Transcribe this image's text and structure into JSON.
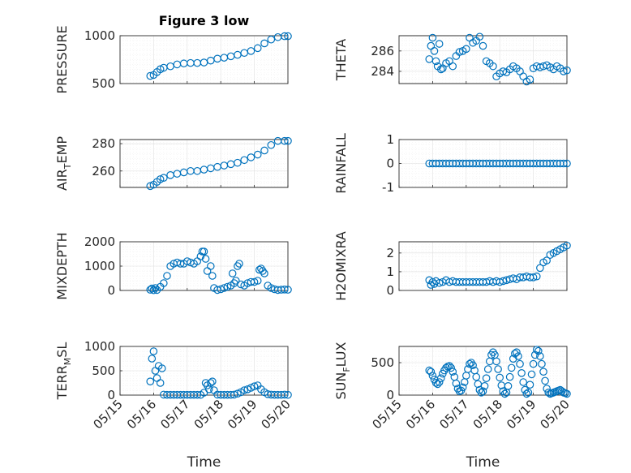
{
  "chart_data": [
    {
      "id": "pressure",
      "type": "scatter",
      "title": "Figure 3 low",
      "ylabel": "PRESSURE",
      "xlabel": "",
      "xlim": [
        0,
        5
      ],
      "ylim": [
        500,
        1000
      ],
      "yticks": [
        500,
        1000
      ],
      "color": "#0072bd",
      "x": [
        0.9,
        1.0,
        1.1,
        1.2,
        1.3,
        1.5,
        1.7,
        1.9,
        2.1,
        2.3,
        2.5,
        2.7,
        2.9,
        3.1,
        3.3,
        3.5,
        3.7,
        3.9,
        4.1,
        4.3,
        4.5,
        4.7,
        4.9,
        5.0
      ],
      "y": [
        580,
        590,
        620,
        650,
        665,
        680,
        700,
        710,
        715,
        715,
        720,
        740,
        760,
        770,
        785,
        800,
        820,
        840,
        870,
        920,
        960,
        985,
        995,
        995
      ]
    },
    {
      "id": "theta",
      "type": "scatter",
      "title": "",
      "ylabel": "THETA",
      "xlabel": "",
      "xlim": [
        0,
        5
      ],
      "ylim": [
        282.8,
        287.5
      ],
      "yticks": [
        284,
        286
      ],
      "color": "#0072bd",
      "x": [
        0.9,
        0.95,
        1.0,
        1.05,
        1.1,
        1.15,
        1.2,
        1.25,
        1.3,
        1.4,
        1.5,
        1.6,
        1.7,
        1.8,
        1.9,
        2.0,
        2.1,
        2.2,
        2.3,
        2.4,
        2.5,
        2.6,
        2.7,
        2.8,
        2.9,
        3.0,
        3.1,
        3.2,
        3.3,
        3.4,
        3.5,
        3.6,
        3.7,
        3.8,
        3.9,
        4.0,
        4.1,
        4.2,
        4.3,
        4.4,
        4.5,
        4.6,
        4.7,
        4.8,
        4.9,
        5.0
      ],
      "y": [
        285.2,
        286.5,
        287.3,
        286.0,
        285.0,
        284.5,
        286.7,
        284.2,
        284.3,
        284.8,
        285.0,
        284.5,
        285.5,
        285.9,
        286.0,
        286.2,
        287.3,
        286.8,
        287.0,
        287.4,
        286.5,
        285.0,
        284.8,
        284.5,
        283.5,
        283.8,
        284.0,
        283.9,
        284.2,
        284.5,
        284.3,
        284.0,
        283.5,
        283.0,
        283.2,
        284.3,
        284.5,
        284.4,
        284.5,
        284.6,
        284.4,
        284.2,
        284.5,
        284.3,
        284.0,
        284.1
      ]
    },
    {
      "id": "air_temp",
      "type": "scatter",
      "title": "",
      "ylabel": "AIR_TEMP",
      "ylabel_main": "AIR",
      "ylabel_sub": "T",
      "ylabel_rest": "EMP",
      "xlabel": "",
      "xlim": [
        0,
        5
      ],
      "ylim": [
        248,
        283
      ],
      "yticks": [
        260,
        280
      ],
      "color": "#0072bd",
      "x": [
        0.9,
        1.0,
        1.1,
        1.2,
        1.3,
        1.5,
        1.7,
        1.9,
        2.1,
        2.3,
        2.5,
        2.7,
        2.9,
        3.1,
        3.3,
        3.5,
        3.7,
        3.9,
        4.1,
        4.3,
        4.5,
        4.7,
        4.9,
        5.0
      ],
      "y": [
        249,
        250,
        252,
        254,
        255,
        257,
        258,
        259,
        260,
        260,
        261,
        262,
        263,
        264,
        265,
        266,
        268,
        270,
        272,
        275,
        279,
        282,
        282,
        282
      ]
    },
    {
      "id": "rainfall",
      "type": "scatter",
      "title": "",
      "ylabel": "RAINFALL",
      "xlabel": "",
      "xlim": [
        0,
        5
      ],
      "ylim": [
        -1,
        1
      ],
      "yticks": [
        -1,
        0,
        1
      ],
      "color": "#0072bd",
      "x": [
        0.9,
        1.0,
        1.1,
        1.2,
        1.3,
        1.4,
        1.5,
        1.6,
        1.7,
        1.8,
        1.9,
        2.0,
        2.1,
        2.2,
        2.3,
        2.4,
        2.5,
        2.6,
        2.7,
        2.8,
        2.9,
        3.0,
        3.1,
        3.2,
        3.3,
        3.4,
        3.5,
        3.6,
        3.7,
        3.8,
        3.9,
        4.0,
        4.1,
        4.2,
        4.3,
        4.4,
        4.5,
        4.6,
        4.7,
        4.8,
        4.9,
        5.0
      ],
      "y": [
        0,
        0,
        0,
        0,
        0,
        0,
        0,
        0,
        0,
        0,
        0,
        0,
        0,
        0,
        0,
        0,
        0,
        0,
        0,
        0,
        0,
        0,
        0,
        0,
        0,
        0,
        0,
        0,
        0,
        0,
        0,
        0,
        0,
        0,
        0,
        0,
        0,
        0,
        0,
        0,
        0,
        0
      ]
    },
    {
      "id": "mixdepth",
      "type": "scatter",
      "title": "",
      "ylabel": "MIXDEPTH",
      "xlabel": "",
      "xlim": [
        0,
        5
      ],
      "ylim": [
        0,
        2000
      ],
      "yticks": [
        0,
        1000,
        2000
      ],
      "color": "#0072bd",
      "x": [
        0.9,
        0.95,
        1.0,
        1.05,
        1.1,
        1.2,
        1.3,
        1.4,
        1.5,
        1.6,
        1.7,
        1.8,
        1.9,
        2.0,
        2.1,
        2.2,
        2.3,
        2.4,
        2.45,
        2.5,
        2.55,
        2.6,
        2.7,
        2.75,
        2.8,
        2.9,
        3.0,
        3.1,
        3.2,
        3.3,
        3.35,
        3.4,
        3.45,
        3.5,
        3.55,
        3.6,
        3.7,
        3.8,
        3.9,
        4.0,
        4.1,
        4.15,
        4.2,
        4.25,
        4.3,
        4.4,
        4.5,
        4.6,
        4.7,
        4.8,
        4.9,
        5.0
      ],
      "y": [
        30,
        80,
        10,
        100,
        20,
        150,
        300,
        600,
        1000,
        1100,
        1150,
        1100,
        1100,
        1200,
        1150,
        1100,
        1200,
        1400,
        1600,
        1600,
        1300,
        800,
        1000,
        600,
        100,
        20,
        50,
        100,
        150,
        200,
        700,
        300,
        400,
        1000,
        1100,
        250,
        200,
        300,
        350,
        350,
        400,
        850,
        900,
        800,
        700,
        200,
        100,
        50,
        20,
        30,
        40,
        30
      ]
    },
    {
      "id": "h2omixra",
      "type": "scatter",
      "title": "",
      "ylabel": "H2OMIXRA",
      "xlabel": "",
      "xlim": [
        0,
        5
      ],
      "ylim": [
        0,
        2.6
      ],
      "yticks": [
        0,
        1,
        2
      ],
      "color": "#0072bd",
      "x": [
        0.9,
        0.95,
        1.0,
        1.05,
        1.1,
        1.2,
        1.3,
        1.4,
        1.5,
        1.6,
        1.7,
        1.8,
        1.9,
        2.0,
        2.1,
        2.2,
        2.3,
        2.4,
        2.5,
        2.6,
        2.7,
        2.8,
        2.9,
        3.0,
        3.1,
        3.2,
        3.3,
        3.4,
        3.5,
        3.6,
        3.7,
        3.8,
        3.9,
        4.0,
        4.1,
        4.2,
        4.3,
        4.4,
        4.5,
        4.6,
        4.7,
        4.8,
        4.9,
        5.0
      ],
      "y": [
        0.55,
        0.3,
        0.45,
        0.35,
        0.5,
        0.4,
        0.45,
        0.55,
        0.45,
        0.5,
        0.45,
        0.45,
        0.45,
        0.45,
        0.45,
        0.45,
        0.45,
        0.45,
        0.45,
        0.45,
        0.5,
        0.45,
        0.5,
        0.45,
        0.5,
        0.55,
        0.6,
        0.65,
        0.6,
        0.7,
        0.7,
        0.75,
        0.7,
        0.7,
        0.75,
        1.2,
        1.5,
        1.6,
        1.9,
        2.0,
        2.1,
        2.2,
        2.3,
        2.4
      ]
    },
    {
      "id": "terr_msl",
      "type": "scatter",
      "title": "",
      "ylabel": "TERR_MSL",
      "ylabel_main": "TERR",
      "ylabel_sub": "M",
      "ylabel_rest": "SL",
      "xlabel": "Time",
      "xlim": [
        0,
        5
      ],
      "ylim": [
        0,
        1000
      ],
      "yticks": [
        0,
        500,
        1000
      ],
      "color": "#0072bd",
      "xticklabels": [
        "05/15",
        "05/16",
        "05/17",
        "05/18",
        "05/19",
        "05/20"
      ],
      "x": [
        0.9,
        0.95,
        1.0,
        1.05,
        1.1,
        1.15,
        1.2,
        1.25,
        1.3,
        1.4,
        1.5,
        1.6,
        1.7,
        1.8,
        1.9,
        2.0,
        2.1,
        2.2,
        2.3,
        2.4,
        2.5,
        2.55,
        2.6,
        2.65,
        2.7,
        2.75,
        2.8,
        2.9,
        3.0,
        3.1,
        3.2,
        3.3,
        3.4,
        3.5,
        3.6,
        3.7,
        3.8,
        3.9,
        4.0,
        4.1,
        4.2,
        4.3,
        4.4,
        4.5,
        4.6,
        4.7,
        4.8,
        4.9,
        5.0
      ],
      "y": [
        280,
        750,
        900,
        500,
        350,
        600,
        250,
        550,
        10,
        5,
        5,
        5,
        5,
        5,
        5,
        5,
        5,
        5,
        5,
        5,
        50,
        250,
        200,
        120,
        250,
        280,
        100,
        10,
        5,
        5,
        5,
        5,
        10,
        30,
        60,
        100,
        120,
        150,
        180,
        200,
        120,
        60,
        20,
        10,
        5,
        5,
        5,
        10,
        5
      ]
    },
    {
      "id": "sun_flux",
      "type": "scatter",
      "title": "",
      "ylabel": "SUN_FLUX",
      "ylabel_main": "SUN",
      "ylabel_sub": "F",
      "ylabel_rest": "LUX",
      "xlabel": "Time",
      "xlim": [
        0,
        5
      ],
      "ylim": [
        0,
        750
      ],
      "yticks": [
        0,
        500
      ],
      "color": "#0072bd",
      "xticklabels": [
        "05/15",
        "05/16",
        "05/17",
        "05/18",
        "05/19",
        "05/20"
      ],
      "x": [
        0.9,
        0.95,
        1.0,
        1.05,
        1.1,
        1.15,
        1.2,
        1.25,
        1.3,
        1.35,
        1.4,
        1.45,
        1.5,
        1.55,
        1.6,
        1.65,
        1.7,
        1.75,
        1.8,
        1.85,
        1.9,
        1.95,
        2.0,
        2.05,
        2.1,
        2.15,
        2.2,
        2.25,
        2.3,
        2.35,
        2.4,
        2.45,
        2.5,
        2.55,
        2.6,
        2.65,
        2.7,
        2.75,
        2.8,
        2.85,
        2.9,
        2.95,
        3.0,
        3.05,
        3.1,
        3.15,
        3.2,
        3.25,
        3.3,
        3.35,
        3.4,
        3.45,
        3.5,
        3.55,
        3.6,
        3.65,
        3.7,
        3.75,
        3.8,
        3.85,
        3.9,
        3.95,
        4.0,
        4.05,
        4.1,
        4.15,
        4.2,
        4.25,
        4.3,
        4.35,
        4.4,
        4.45,
        4.5,
        4.55,
        4.6,
        4.65,
        4.7,
        4.75,
        4.8,
        4.85,
        4.9,
        4.95,
        5.0
      ],
      "y": [
        380,
        360,
        300,
        240,
        190,
        170,
        200,
        260,
        330,
        380,
        420,
        440,
        450,
        420,
        360,
        280,
        180,
        100,
        60,
        70,
        120,
        200,
        300,
        400,
        480,
        500,
        460,
        380,
        280,
        170,
        80,
        40,
        60,
        140,
        260,
        400,
        520,
        620,
        660,
        620,
        520,
        400,
        270,
        150,
        60,
        20,
        40,
        140,
        280,
        420,
        560,
        640,
        660,
        600,
        480,
        340,
        200,
        80,
        20,
        40,
        160,
        320,
        480,
        620,
        700,
        680,
        600,
        480,
        360,
        220,
        100,
        40,
        20,
        30,
        40,
        50,
        60,
        70,
        80,
        60,
        40,
        30,
        20
      ]
    }
  ]
}
